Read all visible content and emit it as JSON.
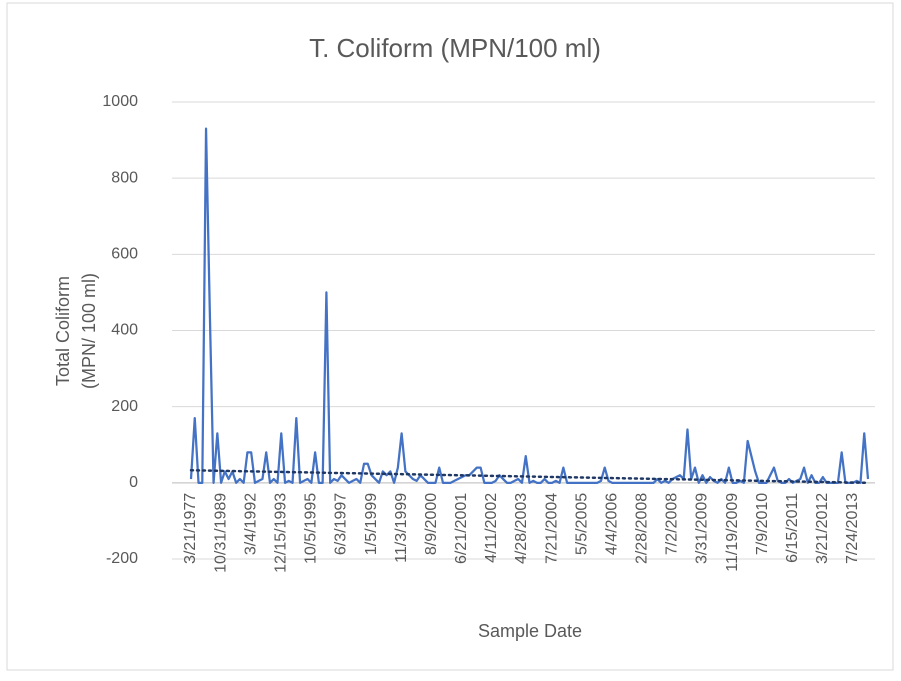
{
  "chart_data": {
    "type": "line",
    "title": "T. Coliform (MPN/100 ml)",
    "ylabel_lines": [
      "Total Coliform",
      "(MPN/ 100 ml)"
    ],
    "xlabel": "Sample Date",
    "ylim": [
      -200,
      1000
    ],
    "yticks": [
      -200,
      0,
      200,
      400,
      600,
      800,
      1000
    ],
    "grid": true,
    "categories": [
      "3/21/1977",
      null,
      null,
      null,
      null,
      null,
      null,
      null,
      "10/31/1989",
      null,
      null,
      null,
      null,
      null,
      null,
      null,
      "3/4/1992",
      null,
      null,
      null,
      null,
      null,
      null,
      null,
      "12/15/1993",
      null,
      null,
      null,
      null,
      null,
      null,
      null,
      "10/5/1995",
      null,
      null,
      null,
      null,
      null,
      null,
      null,
      "6/3/1997",
      null,
      null,
      null,
      null,
      null,
      null,
      null,
      "1/5/1999",
      null,
      null,
      null,
      null,
      null,
      null,
      null,
      "11/3/1999",
      null,
      null,
      null,
      null,
      null,
      null,
      null,
      "8/9/2000",
      null,
      null,
      null,
      null,
      null,
      null,
      null,
      "6/21/2001",
      null,
      null,
      null,
      null,
      null,
      null,
      null,
      "4/11/2002",
      null,
      null,
      null,
      null,
      null,
      null,
      null,
      "4/28/2003",
      null,
      null,
      null,
      null,
      null,
      null,
      null,
      "7/21/2004",
      null,
      null,
      null,
      null,
      null,
      null,
      null,
      "5/5/2005",
      null,
      null,
      null,
      null,
      null,
      null,
      null,
      "4/4/2006",
      null,
      null,
      null,
      null,
      null,
      null,
      null,
      "2/28/2008",
      null,
      null,
      null,
      null,
      null,
      null,
      null,
      "7/2/2008",
      null,
      null,
      null,
      null,
      null,
      null,
      null,
      "3/31/2009",
      null,
      null,
      null,
      null,
      null,
      null,
      null,
      "11/19/2009",
      null,
      null,
      null,
      null,
      null,
      null,
      null,
      "7/9/2010",
      null,
      null,
      null,
      null,
      null,
      null,
      null,
      "6/15/2011",
      null,
      null,
      null,
      null,
      null,
      null,
      null,
      "3/21/2012",
      null,
      null,
      null,
      null,
      null,
      null,
      null,
      "7/24/2013",
      null,
      null,
      null,
      null
    ],
    "series": [
      {
        "color": "#4472c4",
        "values": [
          10,
          170,
          0,
          0,
          930,
          450,
          0,
          130,
          0,
          30,
          10,
          30,
          0,
          10,
          0,
          80,
          80,
          0,
          5,
          10,
          80,
          0,
          10,
          0,
          130,
          0,
          5,
          0,
          170,
          0,
          5,
          10,
          0,
          80,
          0,
          0,
          500,
          0,
          10,
          5,
          20,
          10,
          0,
          5,
          10,
          0,
          50,
          50,
          20,
          10,
          0,
          30,
          20,
          30,
          0,
          40,
          130,
          30,
          20,
          10,
          5,
          20,
          10,
          0,
          0,
          0,
          40,
          0,
          0,
          0,
          5,
          10,
          15,
          20,
          20,
          30,
          40,
          40,
          0,
          0,
          0,
          5,
          20,
          10,
          0,
          0,
          5,
          10,
          0,
          70,
          0,
          5,
          0,
          0,
          10,
          0,
          0,
          5,
          0,
          40,
          0,
          0,
          0,
          0,
          0,
          0,
          0,
          0,
          0,
          5,
          40,
          5,
          0,
          0,
          0,
          0,
          0,
          0,
          0,
          0,
          0,
          0,
          0,
          0,
          10,
          0,
          5,
          0,
          10,
          15,
          20,
          10,
          140,
          10,
          40,
          0,
          20,
          0,
          15,
          5,
          0,
          10,
          0,
          40,
          0,
          0,
          5,
          0,
          110,
          70,
          30,
          0,
          0,
          0,
          20,
          40,
          5,
          0,
          0,
          10,
          0,
          5,
          10,
          40,
          0,
          20,
          0,
          0,
          15,
          0,
          0,
          0,
          0,
          80,
          0,
          0,
          0,
          5,
          0,
          130,
          10
        ]
      }
    ],
    "trendline": {
      "color": "#203864",
      "values": [
        33,
        0
      ]
    }
  }
}
